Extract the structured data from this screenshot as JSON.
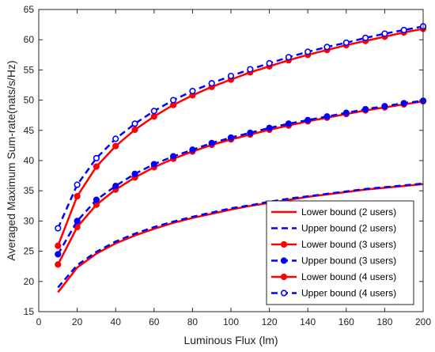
{
  "chart_data": {
    "type": "line",
    "title": "",
    "xlabel": "Luminous Flux (lm)",
    "ylabel": "Averaged Maximum Sum-rate(nats/s/Hz)",
    "xlim": [
      0,
      200
    ],
    "ylim": [
      15,
      65
    ],
    "xticks": [
      0,
      20,
      40,
      60,
      80,
      100,
      120,
      140,
      160,
      180,
      200
    ],
    "yticks": [
      15,
      20,
      25,
      30,
      35,
      40,
      45,
      50,
      55,
      60,
      65
    ],
    "grid": false,
    "legend_position": "bottom-right",
    "series": [
      {
        "name": "Lower bound (2 users)",
        "color": "#ff0000",
        "dash": "solid",
        "marker": "none",
        "x": [
          10,
          20,
          30,
          40,
          50,
          60,
          70,
          80,
          90,
          100,
          110,
          120,
          130,
          140,
          150,
          160,
          170,
          180,
          190,
          200
        ],
        "y": [
          18.2,
          22.3,
          24.6,
          26.3,
          27.6,
          28.7,
          29.7,
          30.5,
          31.2,
          31.9,
          32.5,
          33.0,
          33.5,
          34.0,
          34.4,
          34.8,
          35.2,
          35.5,
          35.8,
          36.1
        ]
      },
      {
        "name": "Upper bound (2 users)",
        "color": "#0000ff",
        "dash": "dashed",
        "marker": "none",
        "x": [
          10,
          20,
          30,
          40,
          50,
          60,
          70,
          80,
          90,
          100,
          110,
          120,
          130,
          140,
          150,
          160,
          170,
          180,
          190,
          200
        ],
        "y": [
          19.0,
          22.7,
          24.9,
          26.6,
          27.9,
          29.0,
          29.9,
          30.7,
          31.4,
          32.1,
          32.6,
          33.2,
          33.7,
          34.1,
          34.5,
          34.9,
          35.3,
          35.6,
          35.9,
          36.2
        ]
      },
      {
        "name": "Lower bound (3 users)",
        "color": "#ff0000",
        "dash": "solid",
        "marker": "filled-circle",
        "x": [
          10,
          20,
          30,
          40,
          50,
          60,
          70,
          80,
          90,
          100,
          110,
          120,
          130,
          140,
          150,
          160,
          170,
          180,
          190,
          200
        ],
        "y": [
          22.8,
          29.0,
          32.7,
          35.2,
          37.2,
          38.9,
          40.3,
          41.5,
          42.6,
          43.5,
          44.3,
          45.1,
          45.8,
          46.5,
          47.1,
          47.7,
          48.3,
          48.8,
          49.3,
          49.8
        ]
      },
      {
        "name": "Upper bound (3 users)",
        "color": "#0000ff",
        "dash": "dashed",
        "marker": "filled-circle",
        "x": [
          10,
          20,
          30,
          40,
          50,
          60,
          70,
          80,
          90,
          100,
          110,
          120,
          130,
          140,
          150,
          160,
          170,
          180,
          190,
          200
        ],
        "y": [
          24.5,
          30.0,
          33.5,
          35.8,
          37.8,
          39.4,
          40.7,
          41.8,
          42.9,
          43.8,
          44.6,
          45.4,
          46.1,
          46.7,
          47.3,
          47.9,
          48.5,
          49.0,
          49.5,
          49.9
        ]
      },
      {
        "name": "Lower bound (4 users)",
        "color": "#ff0000",
        "dash": "solid",
        "marker": "filled-circle",
        "x": [
          10,
          20,
          30,
          40,
          50,
          60,
          70,
          80,
          90,
          100,
          110,
          120,
          130,
          140,
          150,
          160,
          170,
          180,
          190,
          200
        ],
        "y": [
          25.9,
          34.1,
          39.0,
          42.4,
          45.1,
          47.3,
          49.2,
          50.8,
          52.2,
          53.4,
          54.6,
          55.6,
          56.6,
          57.5,
          58.3,
          59.1,
          59.8,
          60.5,
          61.2,
          61.8
        ]
      },
      {
        "name": "Upper bound (4 users)",
        "color": "#0000ff",
        "dash": "dashed",
        "marker": "open-circle",
        "x": [
          10,
          20,
          30,
          40,
          50,
          60,
          70,
          80,
          90,
          100,
          110,
          120,
          130,
          140,
          150,
          160,
          170,
          180,
          190,
          200
        ],
        "y": [
          28.8,
          36.0,
          40.4,
          43.6,
          46.1,
          48.2,
          50.0,
          51.5,
          52.8,
          54.0,
          55.1,
          56.1,
          57.1,
          58.0,
          58.8,
          59.5,
          60.3,
          61.0,
          61.6,
          62.2
        ]
      }
    ]
  }
}
